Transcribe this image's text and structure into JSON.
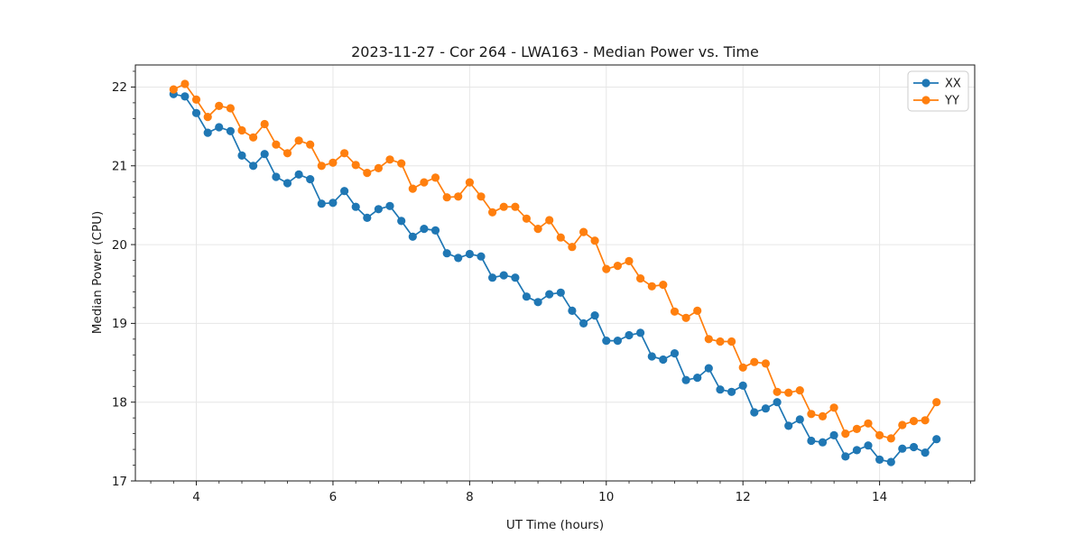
{
  "chart_data": {
    "type": "line",
    "title": "2023-11-27 - Cor 264 - LWA163 - Median Power vs. Time",
    "xlabel": "UT Time (hours)",
    "ylabel": "Median Power (CPU)",
    "xlim": [
      3.108,
      15.392
    ],
    "ylim": [
      17.0,
      22.28
    ],
    "xticks": [
      4,
      6,
      8,
      10,
      12,
      14
    ],
    "yticks": [
      17,
      18,
      19,
      20,
      21,
      22
    ],
    "x_minor_step": 0.3333,
    "y_minor_step": 0.2,
    "grid": true,
    "legend_position": "upper right",
    "marker": "circle",
    "background": "#ffffff",
    "grid_color": "#e6e6e6",
    "spine_color": "#1a1a1a",
    "x": [
      3.667,
      3.833,
      4.0,
      4.167,
      4.333,
      4.5,
      4.667,
      4.833,
      5.0,
      5.167,
      5.333,
      5.5,
      5.667,
      5.833,
      6.0,
      6.167,
      6.333,
      6.5,
      6.667,
      6.833,
      7.0,
      7.167,
      7.333,
      7.5,
      7.667,
      7.833,
      8.0,
      8.167,
      8.333,
      8.5,
      8.667,
      8.833,
      9.0,
      9.167,
      9.333,
      9.5,
      9.667,
      9.833,
      10.0,
      10.167,
      10.333,
      10.5,
      10.667,
      10.833,
      11.0,
      11.167,
      11.333,
      11.5,
      11.667,
      11.833,
      12.0,
      12.167,
      12.333,
      12.5,
      12.667,
      12.833,
      13.0,
      13.167,
      13.333,
      13.5,
      13.667,
      13.833,
      14.0,
      14.167,
      14.333,
      14.5,
      14.667,
      14.833
    ],
    "series": [
      {
        "name": "XX",
        "color": "#1f77b4",
        "values": [
          21.91,
          21.88,
          21.67,
          21.42,
          21.49,
          21.44,
          21.13,
          21.0,
          21.15,
          20.86,
          20.78,
          20.89,
          20.83,
          20.52,
          20.53,
          20.68,
          20.48,
          20.34,
          20.45,
          20.49,
          20.3,
          20.1,
          20.2,
          20.18,
          19.89,
          19.83,
          19.88,
          19.85,
          19.58,
          19.61,
          19.58,
          19.34,
          19.27,
          19.37,
          19.39,
          19.16,
          19.0,
          19.1,
          18.78,
          18.78,
          18.85,
          18.88,
          18.58,
          18.54,
          18.62,
          18.28,
          18.31,
          18.43,
          18.16,
          18.13,
          18.21,
          17.87,
          17.92,
          18.0,
          17.7,
          17.78,
          17.51,
          17.49,
          17.58,
          17.31,
          17.39,
          17.45,
          17.27,
          17.24,
          17.41,
          17.43,
          17.36,
          17.53
        ]
      },
      {
        "name": "YY",
        "color": "#ff7f0e",
        "values": [
          21.97,
          22.04,
          21.84,
          21.62,
          21.76,
          21.73,
          21.45,
          21.36,
          21.53,
          21.27,
          21.16,
          21.32,
          21.27,
          21.0,
          21.04,
          21.16,
          21.01,
          20.91,
          20.97,
          21.08,
          21.03,
          20.71,
          20.79,
          20.85,
          20.6,
          20.61,
          20.79,
          20.61,
          20.41,
          20.48,
          20.48,
          20.33,
          20.2,
          20.31,
          20.09,
          19.97,
          20.16,
          20.05,
          19.69,
          19.73,
          19.79,
          19.57,
          19.47,
          19.49,
          19.15,
          19.07,
          19.16,
          18.8,
          18.77,
          18.77,
          18.44,
          18.51,
          18.49,
          18.13,
          18.12,
          18.15,
          17.85,
          17.82,
          17.93,
          17.6,
          17.66,
          17.73,
          17.58,
          17.54,
          17.71,
          17.76,
          17.77,
          18.0
        ]
      }
    ]
  }
}
